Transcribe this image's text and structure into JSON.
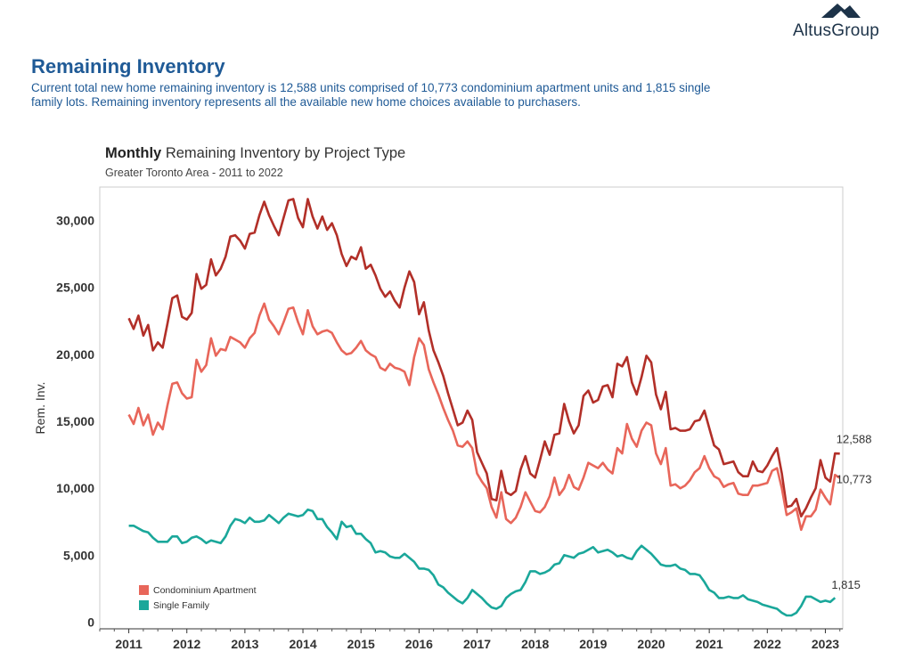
{
  "logo": {
    "text": "AltusGroup",
    "icon": "mountain-logo-icon",
    "color": "#1d3349"
  },
  "header": {
    "title": "Remaining Inventory",
    "description": "Current total new home remaining inventory is 12,588 units comprised of 10,773 condominium apartment units and 1,815 single family lots. Remaining inventory represents all the available new home choices available to purchasers."
  },
  "chart_header": {
    "title_bold": "Monthly",
    "title_rest": " Remaining Inventory by Project Type",
    "subtitle": "Greater Toronto Area - 2011 to 2022"
  },
  "chart_data": {
    "type": "line",
    "title": "Monthly Remaining Inventory by Project Type",
    "subtitle": "Greater Toronto Area - 2011 to 2022",
    "xlabel": "",
    "ylabel": "Rem. Inv.",
    "ylim": [
      -500,
      32500
    ],
    "xlim": [
      2010.5,
      2023.3
    ],
    "x_ticks": [
      "2011",
      "2012",
      "2013",
      "2014",
      "2015",
      "2016",
      "2017",
      "2018",
      "2019",
      "2020",
      "2021",
      "2022",
      "2023"
    ],
    "y_ticks": [
      "0",
      "5,000",
      "10,000",
      "15,000",
      "20,000",
      "25,000",
      "30,000"
    ],
    "grid": false,
    "legend_placement": "bottom-left",
    "x_start": "2011-01",
    "x_step": "monthly",
    "series": [
      {
        "name": "",
        "color": "#b22f28",
        "end_label": "12,588",
        "values": [
          22700,
          21900,
          22900,
          21400,
          22200,
          20300,
          20900,
          20500,
          22300,
          24200,
          24400,
          22800,
          22600,
          23100,
          26000,
          24900,
          25200,
          27100,
          25900,
          26400,
          27300,
          28800,
          28900,
          28500,
          27900,
          29000,
          29100,
          30400,
          31400,
          30400,
          29600,
          28900,
          30200,
          31500,
          31600,
          30200,
          29500,
          31600,
          30300,
          29400,
          30300,
          29300,
          29800,
          28900,
          27500,
          26600,
          27300,
          27100,
          28000,
          26400,
          26700,
          25900,
          24900,
          24300,
          24700,
          24000,
          23500,
          25000,
          26200,
          25400,
          23000,
          23900,
          21800,
          20300,
          19400,
          18400,
          17100,
          15900,
          14700,
          14900,
          15800,
          15100,
          12700,
          11900,
          11100,
          9200,
          9100,
          11300,
          9700,
          9500,
          9800,
          11400,
          12400,
          11100,
          10800,
          12100,
          13500,
          12500,
          14000,
          14100,
          16300,
          15000,
          14100,
          14700,
          16900,
          17300,
          16400,
          16600,
          17600,
          17700,
          16800,
          19300,
          19100,
          19800,
          17900,
          17000,
          18300,
          19900,
          19400,
          17000,
          15900,
          17200,
          14400,
          14500,
          14300,
          14300,
          14400,
          15000,
          15100,
          15800,
          14500,
          13200,
          12900,
          11800,
          11900,
          12000,
          11200,
          10900,
          10900,
          12000,
          11300,
          11200,
          11700,
          12400,
          13000,
          11100,
          8600,
          8700,
          9200,
          7900,
          8500,
          9300,
          10000,
          12100,
          10800,
          10500,
          12600,
          12588
        ]
      },
      {
        "name": "Condominium Apartment",
        "color": "#e8665a",
        "end_label": "10,773",
        "values": [
          15500,
          14800,
          16000,
          14700,
          15500,
          14000,
          14900,
          14400,
          16200,
          17800,
          17900,
          17100,
          16700,
          16800,
          19600,
          18700,
          19200,
          21200,
          19900,
          20400,
          20300,
          21300,
          21100,
          20900,
          20500,
          21200,
          21600,
          22900,
          23800,
          22600,
          22100,
          21500,
          22400,
          23400,
          23500,
          22400,
          21500,
          23300,
          22100,
          21500,
          21700,
          21800,
          21600,
          20900,
          20300,
          20000,
          20100,
          20500,
          21000,
          20300,
          20000,
          19800,
          19000,
          18800,
          19300,
          19000,
          18900,
          18700,
          17700,
          19800,
          21200,
          20700,
          18900,
          17900,
          17000,
          16000,
          15100,
          14300,
          13200,
          13100,
          13500,
          13000,
          11100,
          10500,
          10000,
          8600,
          7800,
          9700,
          7700,
          7400,
          7800,
          8600,
          9700,
          9000,
          8300,
          8200,
          8600,
          9400,
          10800,
          9500,
          10000,
          11000,
          10100,
          9900,
          10800,
          11900,
          11700,
          11500,
          11900,
          11400,
          11100,
          13000,
          12600,
          14800,
          13700,
          13100,
          14300,
          14900,
          14700,
          12600,
          11800,
          13000,
          10200,
          10300,
          10000,
          10200,
          10600,
          11200,
          11500,
          12400,
          11500,
          10900,
          10700,
          10100,
          10300,
          10400,
          9600,
          9500,
          9500,
          10200,
          10200,
          10300,
          10400,
          11300,
          11500,
          10000,
          8000,
          8200,
          8500,
          6900,
          7900,
          7900,
          8400,
          9900,
          9300,
          8800,
          11000,
          10773
        ]
      },
      {
        "name": "Single Family",
        "color": "#1aa79a",
        "end_label": "1,815",
        "values": [
          7200,
          7200,
          7000,
          6800,
          6700,
          6300,
          6000,
          6000,
          6000,
          6400,
          6400,
          5900,
          6000,
          6300,
          6400,
          6200,
          5900,
          6100,
          6000,
          5900,
          6400,
          7200,
          7700,
          7600,
          7400,
          7800,
          7500,
          7500,
          7600,
          8000,
          7700,
          7400,
          7800,
          8100,
          8000,
          7900,
          8000,
          8400,
          8300,
          7700,
          7700,
          7100,
          6700,
          6200,
          7500,
          7100,
          7200,
          6600,
          6600,
          6200,
          5900,
          5200,
          5300,
          5200,
          4900,
          4800,
          4800,
          5100,
          4800,
          4500,
          4000,
          4000,
          3900,
          3500,
          2800,
          2600,
          2200,
          1900,
          1600,
          1400,
          1800,
          2400,
          2100,
          1800,
          1400,
          1100,
          1000,
          1200,
          1800,
          2100,
          2300,
          2400,
          3000,
          3800,
          3800,
          3600,
          3700,
          3900,
          4300,
          4400,
          5000,
          4900,
          4800,
          5100,
          5200,
          5400,
          5600,
          5200,
          5300,
          5400,
          5200,
          4900,
          5000,
          4800,
          4700,
          5300,
          5700,
          5400,
          5100,
          4700,
          4300,
          4200,
          4200,
          4300,
          4000,
          3900,
          3600,
          3600,
          3500,
          3000,
          2400,
          2200,
          1800,
          1800,
          1900,
          1800,
          1800,
          2000,
          1700,
          1600,
          1500,
          1300,
          1200,
          1100,
          1000,
          700,
          500,
          500,
          700,
          1200,
          1900,
          1900,
          1700,
          1500,
          1600,
          1500,
          1815
        ]
      }
    ]
  }
}
